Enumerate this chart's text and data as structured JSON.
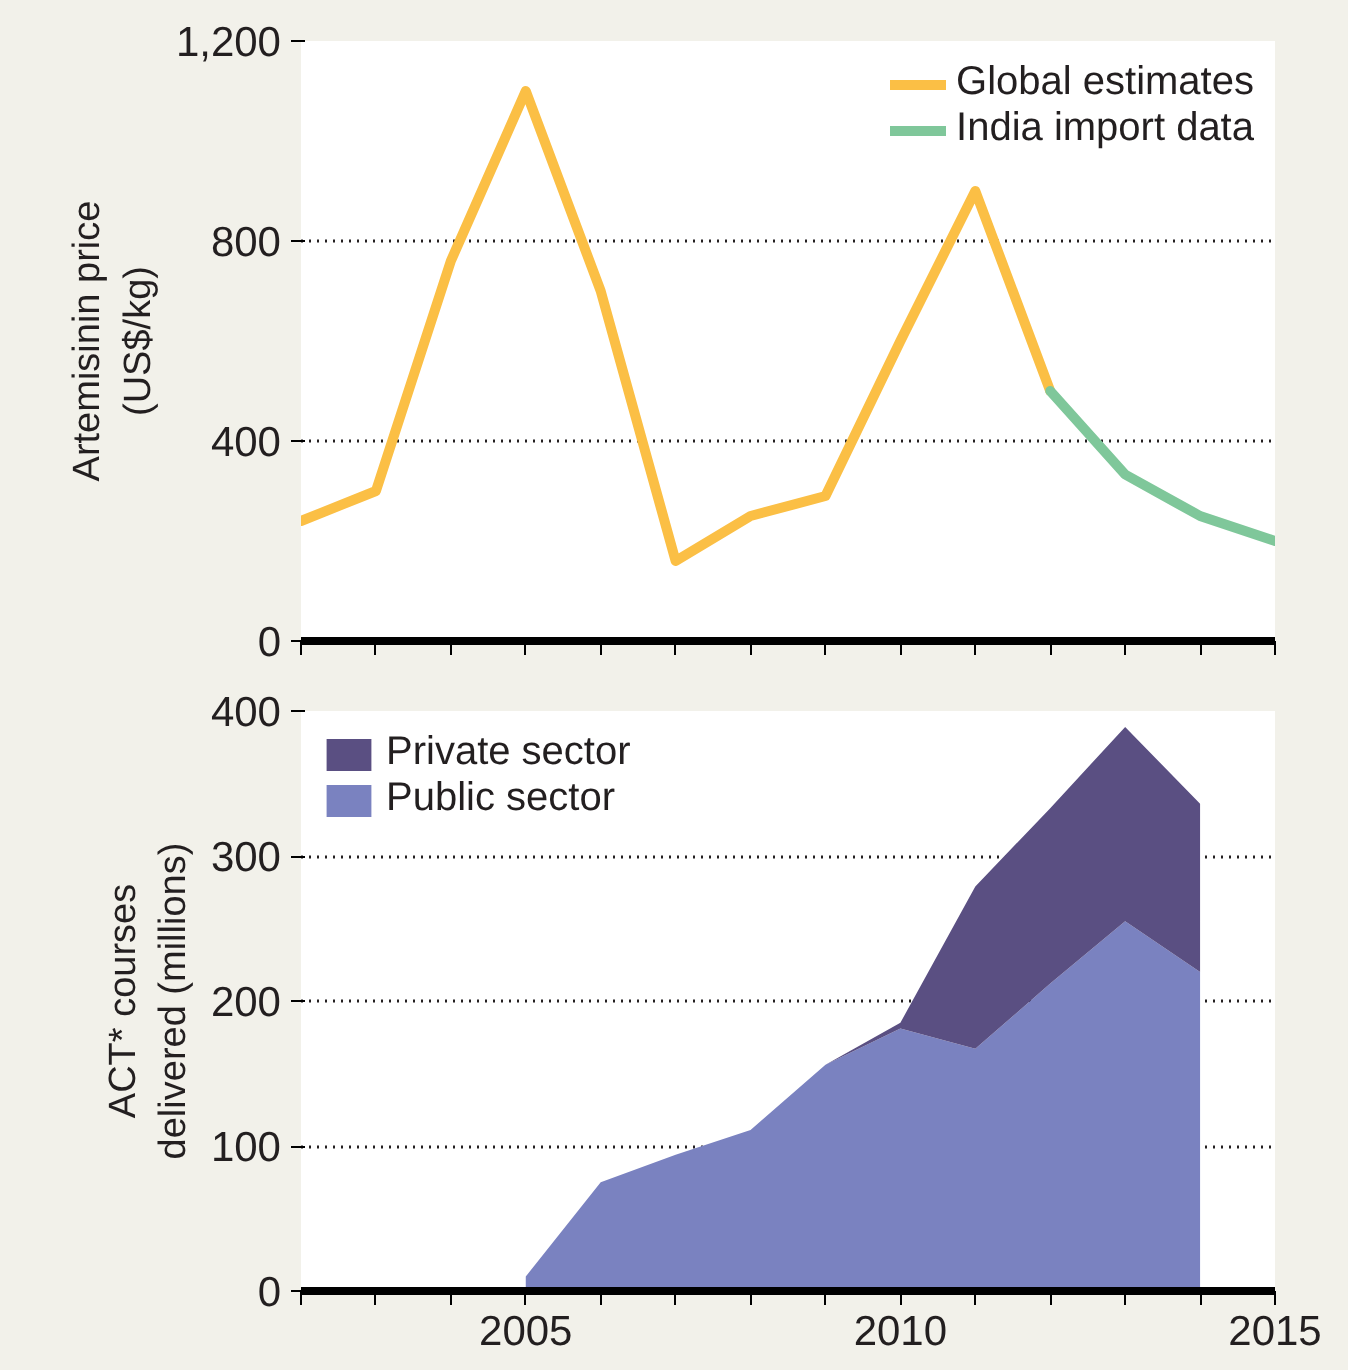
{
  "chart_data": [
    {
      "type": "line",
      "ylabel": "Artemisinin price\n(US$/kg)",
      "xlim": [
        2002,
        2015
      ],
      "ylim": [
        0,
        1200
      ],
      "yticks": [
        0,
        400,
        800,
        {
          "value": 1200,
          "label": "1,200"
        }
      ],
      "xticks": [
        {
          "value": 2002,
          "label": null
        },
        {
          "value": 2003,
          "label": null
        },
        {
          "value": 2004,
          "label": null
        },
        {
          "value": 2005,
          "label": null
        },
        {
          "value": 2006,
          "label": null
        },
        {
          "value": 2007,
          "label": null
        },
        {
          "value": 2008,
          "label": null
        },
        {
          "value": 2009,
          "label": null
        },
        {
          "value": 2010,
          "label": null
        },
        {
          "value": 2011,
          "label": null
        },
        {
          "value": 2012,
          "label": null
        },
        {
          "value": 2013,
          "label": null
        },
        {
          "value": 2014,
          "label": null
        },
        {
          "value": 2015,
          "label": null
        }
      ],
      "grid": "y",
      "legend": "top right",
      "tick_labels": "y",
      "series": [
        {
          "name": "Global estimates",
          "color": "#fbbf45",
          "x": [
            2002,
            2003,
            2004,
            2005,
            2006,
            2007,
            2008,
            2009,
            2010,
            2011,
            2012
          ],
          "values": [
            240,
            300,
            760,
            1100,
            700,
            160,
            250,
            290,
            600,
            900,
            500
          ]
        },
        {
          "name": "India import data",
          "color": "#7fc79a",
          "x": [
            2012,
            2013,
            2014,
            2015
          ],
          "values": [
            500,
            333,
            250,
            200
          ]
        }
      ]
    },
    {
      "type": "area",
      "stacked": true,
      "ylabel": "ACT* courses\ndelivered (millions)",
      "xlim": [
        2002,
        2015
      ],
      "ylim": [
        0,
        400
      ],
      "yticks": [
        0,
        100,
        200,
        300,
        400
      ],
      "xticks": [
        {
          "value": 2002,
          "label": null
        },
        {
          "value": 2003,
          "label": null
        },
        {
          "value": 2004,
          "label": null
        },
        2005,
        {
          "value": 2006,
          "label": null
        },
        {
          "value": 2007,
          "label": null
        },
        {
          "value": 2008,
          "label": null
        },
        {
          "value": 2009,
          "label": null
        },
        2010,
        {
          "value": 2011,
          "label": null
        },
        {
          "value": 2012,
          "label": null
        },
        {
          "value": 2013,
          "label": null
        },
        {
          "value": 2014,
          "label": null
        },
        2015
      ],
      "grid": "y",
      "legend": "top left",
      "x": [
        2005,
        2006,
        2007,
        2008,
        2009,
        2010,
        2011,
        2012,
        2013,
        2014
      ],
      "series": [
        {
          "name": "Public sector",
          "color": "#7a82c0",
          "values": [
            10,
            75,
            94,
            111,
            156,
            181,
            167,
            212,
            255,
            220
          ]
        },
        {
          "name": "Private sector",
          "color": "#5a4f82",
          "values": [
            0,
            0,
            0,
            0,
            0,
            4,
            112,
            121,
            134,
            116
          ]
        }
      ]
    }
  ]
}
